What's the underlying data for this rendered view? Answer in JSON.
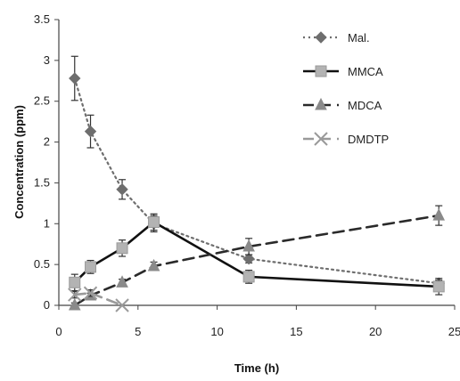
{
  "chart_data": {
    "type": "line",
    "title": "",
    "xlabel": "Time (h)",
    "ylabel": "Concentration (ppm)",
    "xlim": [
      0,
      25
    ],
    "ylim": [
      0,
      3.5
    ],
    "x_ticks": [
      "0",
      "5",
      "10",
      "15",
      "20",
      "25"
    ],
    "y_ticks": [
      "0",
      "0.5",
      "1",
      "1.5",
      "2",
      "2.5",
      "3",
      "3.5"
    ],
    "grid": false,
    "legend_position": "top-right",
    "series": [
      {
        "name": "Mal.",
        "marker": "diamond",
        "line_style": "dotted",
        "color": "#6e6e6e",
        "x": [
          1,
          2,
          4,
          6,
          12,
          24
        ],
        "y": [
          2.78,
          2.13,
          1.42,
          1.0,
          0.57,
          0.27
        ],
        "error": [
          0.27,
          0.2,
          0.12,
          0.1,
          0.05,
          0.04
        ]
      },
      {
        "name": "MMCA",
        "marker": "square",
        "line_style": "solid",
        "color": "#111111",
        "x": [
          1,
          2,
          4,
          6,
          12,
          24
        ],
        "y": [
          0.28,
          0.47,
          0.7,
          1.02,
          0.35,
          0.23
        ],
        "error": [
          0.1,
          0.08,
          0.1,
          0.1,
          0.08,
          0.1
        ]
      },
      {
        "name": "MDCA",
        "marker": "triangle",
        "line_style": "dashed",
        "color": "#2a2a2a",
        "x": [
          1,
          2,
          4,
          6,
          12,
          24
        ],
        "y": [
          0.0,
          0.12,
          0.28,
          0.48,
          0.72,
          1.1
        ],
        "error": [
          0.03,
          0.03,
          0.04,
          0.05,
          0.1,
          0.12
        ]
      },
      {
        "name": "DMDTP",
        "marker": "x",
        "line_style": "dashed",
        "color": "#9a9a9a",
        "x": [
          1,
          2,
          4
        ],
        "y": [
          0.13,
          0.15,
          0.0
        ],
        "error": [
          0.04,
          0.04,
          0.0
        ]
      }
    ]
  }
}
